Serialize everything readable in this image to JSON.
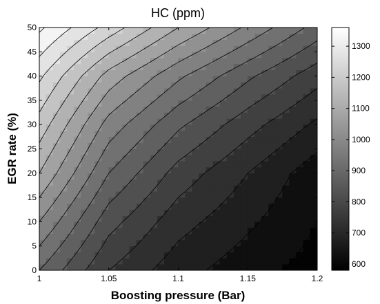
{
  "chart_data": {
    "type": "contour",
    "title": "HC (ppm)",
    "xlabel": "Boosting pressure (Bar)",
    "ylabel": "EGR rate (%)",
    "xlim": [
      1,
      1.2
    ],
    "ylim": [
      0,
      50
    ],
    "x_ticks": [
      "1",
      "1.05",
      "1.1",
      "1.15",
      "1.2"
    ],
    "y_ticks": [
      "0",
      "5",
      "10",
      "15",
      "20",
      "25",
      "30",
      "35",
      "40",
      "45",
      "50"
    ],
    "colorbar": {
      "colormap": "gray",
      "range": [
        580,
        1360
      ],
      "ticks": [
        "600",
        "700",
        "800",
        "900",
        "1000",
        "1100",
        "1200",
        "1300"
      ]
    },
    "contour_levels": [
      600,
      650,
      700,
      750,
      800,
      850,
      900,
      950,
      1000,
      1050,
      1100,
      1150,
      1200,
      1250,
      1300,
      1350
    ],
    "x": [
      1.0,
      1.05,
      1.1,
      1.15,
      1.2
    ],
    "y": [
      0,
      10,
      20,
      30,
      40,
      50
    ],
    "z": [
      [
        900,
        750,
        670,
        620,
        580
      ],
      [
        1000,
        820,
        720,
        660,
        600
      ],
      [
        1100,
        900,
        780,
        700,
        620
      ],
      [
        1180,
        980,
        860,
        770,
        690
      ],
      [
        1260,
        1080,
        960,
        860,
        770
      ],
      [
        1360,
        1230,
        1100,
        990,
        880
      ]
    ]
  }
}
